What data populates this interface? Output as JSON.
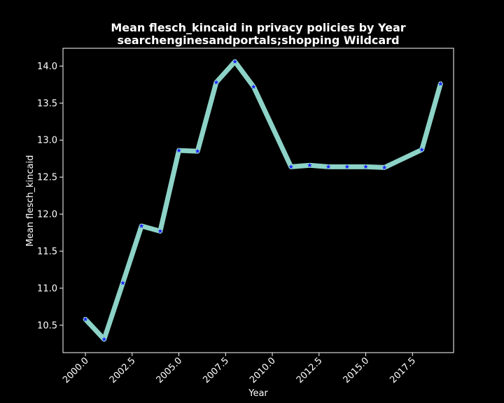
{
  "chart_data": {
    "type": "line",
    "title": "Mean flesch_kincaid in privacy policies by Year",
    "subtitle": "searchenginesandportals;shopping Wildcard",
    "xlabel": "Year",
    "ylabel": "Mean flesch_kincaid",
    "xlim": [
      1998.8,
      2019.7
    ],
    "ylim": [
      10.13,
      14.24
    ],
    "x_ticks": [
      2000.0,
      2002.5,
      2005.0,
      2007.5,
      2010.0,
      2012.5,
      2015.0,
      2017.5
    ],
    "x_tick_labels": [
      "2000.0",
      "2002.5",
      "2005.0",
      "2007.5",
      "2010.0",
      "2012.5",
      "2015.0",
      "2017.5"
    ],
    "y_ticks": [
      10.5,
      11.0,
      11.5,
      12.0,
      12.5,
      13.0,
      13.5,
      14.0
    ],
    "y_tick_labels": [
      "10.5",
      "11.0",
      "11.5",
      "12.0",
      "12.5",
      "13.0",
      "13.5",
      "14.0"
    ],
    "grid": false,
    "line_color": "#8dd3c7",
    "marker_color": "#1f1fff",
    "background_color": "#000000",
    "series": [
      {
        "x": [
          2000,
          2001,
          2002,
          2003,
          2004,
          2005,
          2006,
          2007,
          2008,
          2009,
          2011,
          2012,
          2013,
          2014,
          2015,
          2016,
          2018,
          2019
        ],
        "y": [
          10.58,
          10.31,
          11.07,
          11.84,
          11.77,
          12.86,
          12.85,
          13.78,
          14.06,
          13.72,
          12.64,
          12.66,
          12.64,
          12.64,
          12.64,
          12.63,
          12.87,
          13.76
        ]
      }
    ]
  }
}
